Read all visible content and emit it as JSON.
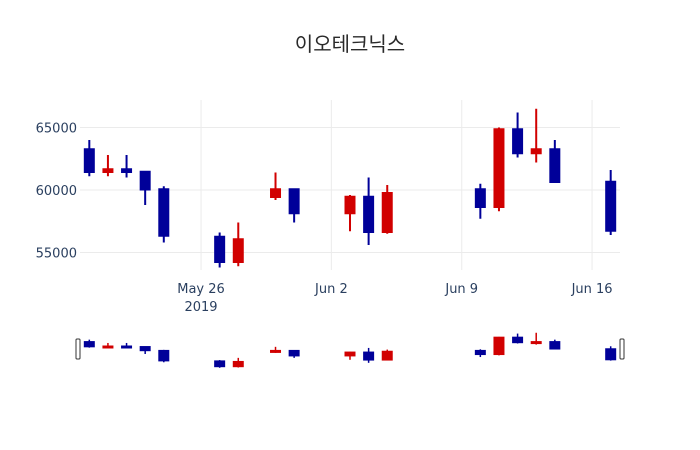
{
  "chart_data": {
    "type": "candlestick",
    "title": "이오테크닉스",
    "xlabel": "",
    "ylabel": "",
    "ylim": [
      53600,
      67200
    ],
    "grid": true,
    "legend": false,
    "increasing_color": "#d10000",
    "decreasing_color": "#000099",
    "y_ticks": [
      55000,
      60000,
      65000
    ],
    "y_tick_labels": [
      "55000",
      "60000",
      "65000"
    ],
    "x_ticks": [
      {
        "date": "2019-05-26",
        "label": "May 26",
        "sublabel": "2019"
      },
      {
        "date": "2019-06-02",
        "label": "Jun 2",
        "sublabel": ""
      },
      {
        "date": "2019-06-09",
        "label": "Jun 9",
        "sublabel": ""
      },
      {
        "date": "2019-06-16",
        "label": "Jun 16",
        "sublabel": ""
      }
    ],
    "x_range": [
      "2019-05-19T12:00",
      "2019-06-17T12:00"
    ],
    "rangeslider": true,
    "candles": [
      {
        "date": "2019-05-20",
        "open": 63300,
        "high": 64000,
        "low": 61100,
        "close": 61400
      },
      {
        "date": "2019-05-21",
        "open": 61400,
        "high": 62800,
        "low": 61100,
        "close": 61700
      },
      {
        "date": "2019-05-22",
        "open": 61700,
        "high": 62800,
        "low": 61000,
        "close": 61400
      },
      {
        "date": "2019-05-23",
        "open": 61500,
        "high": 61500,
        "low": 58800,
        "close": 60000
      },
      {
        "date": "2019-05-24",
        "open": 60100,
        "high": 60300,
        "low": 55800,
        "close": 56300
      },
      {
        "date": "2019-05-27",
        "open": 56300,
        "high": 56600,
        "low": 53800,
        "close": 54200
      },
      {
        "date": "2019-05-28",
        "open": 54200,
        "high": 57400,
        "low": 53900,
        "close": 56100
      },
      {
        "date": "2019-05-30",
        "open": 59400,
        "high": 61400,
        "low": 59200,
        "close": 60100
      },
      {
        "date": "2019-05-31",
        "open": 60100,
        "high": 60100,
        "low": 57400,
        "close": 58100
      },
      {
        "date": "2019-06-03",
        "open": 58100,
        "high": 59600,
        "low": 56700,
        "close": 59500
      },
      {
        "date": "2019-06-04",
        "open": 59500,
        "high": 61000,
        "low": 55600,
        "close": 56600
      },
      {
        "date": "2019-06-05",
        "open": 56600,
        "high": 60400,
        "low": 56500,
        "close": 59800
      },
      {
        "date": "2019-06-10",
        "open": 60100,
        "high": 60500,
        "low": 57700,
        "close": 58600
      },
      {
        "date": "2019-06-11",
        "open": 58600,
        "high": 65000,
        "low": 58300,
        "close": 64900
      },
      {
        "date": "2019-06-12",
        "open": 64900,
        "high": 66200,
        "low": 62600,
        "close": 62900
      },
      {
        "date": "2019-06-13",
        "open": 62900,
        "high": 66500,
        "low": 62200,
        "close": 63300
      },
      {
        "date": "2019-06-14",
        "open": 63300,
        "high": 64000,
        "low": 60600,
        "close": 60600
      },
      {
        "date": "2019-06-17",
        "open": 60700,
        "high": 61600,
        "low": 56400,
        "close": 56700
      }
    ]
  }
}
